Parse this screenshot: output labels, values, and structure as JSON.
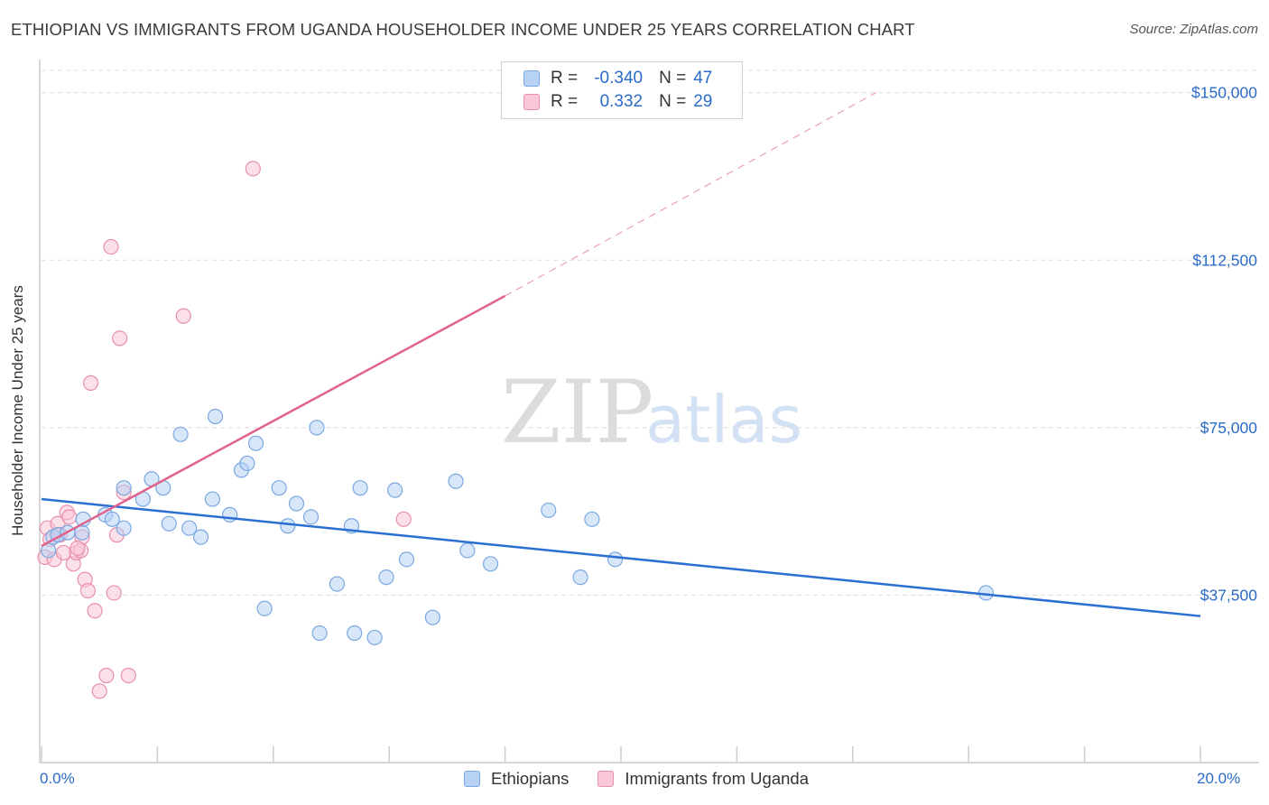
{
  "header": {
    "title": "ETHIOPIAN VS IMMIGRANTS FROM UGANDA HOUSEHOLDER INCOME UNDER 25 YEARS CORRELATION CHART",
    "source_label": "Source: ZipAtlas.com"
  },
  "watermark": {
    "zip": "ZIP",
    "atlas": "atlas"
  },
  "legend": {
    "series": [
      {
        "name": "Ethiopians",
        "r_label": "R =",
        "r_value": "-0.340",
        "n_label": "N =",
        "n_value": "47"
      },
      {
        "name": "Immigrants from Uganda",
        "r_label": "R =",
        "r_value": "0.332",
        "n_label": "N =",
        "n_value": "29"
      }
    ]
  },
  "colors": {
    "ethiopians_fill": "#b8d2f5",
    "ethiopians_stroke": "#7aa8e0",
    "ethiopians_line": "#2a6fd1",
    "uganda_fill": "#f9c7d6",
    "uganda_stroke": "#e98fab",
    "uganda_line": "#e0638c",
    "tick_label": "#2b6bc8",
    "grid": "#dddddd"
  },
  "chart_data": {
    "type": "scatter",
    "title": "ETHIOPIAN VS IMMIGRANTS FROM UGANDA HOUSEHOLDER INCOME UNDER 25 YEARS CORRELATION CHART",
    "xlabel": "",
    "ylabel": "Householder Income Under 25 years",
    "xlim": [
      0,
      20
    ],
    "ylim": [
      0,
      155000
    ],
    "x_tick_labels": [
      "0.0%",
      "20.0%"
    ],
    "y_ticks": [
      37500,
      75000,
      112500,
      150000
    ],
    "y_tick_labels": [
      "$37,500",
      "$75,000",
      "$112,500",
      "$150,000"
    ],
    "series": [
      {
        "name": "Ethiopians",
        "points": [
          [
            0.12,
            47500
          ],
          [
            0.2,
            50500
          ],
          [
            0.28,
            51000
          ],
          [
            0.45,
            51500
          ],
          [
            0.7,
            51500
          ],
          [
            0.72,
            54500
          ],
          [
            1.1,
            55500
          ],
          [
            1.22,
            54500
          ],
          [
            1.42,
            52500
          ],
          [
            1.42,
            61500
          ],
          [
            1.75,
            59000
          ],
          [
            1.9,
            63500
          ],
          [
            2.1,
            61500
          ],
          [
            2.2,
            53500
          ],
          [
            2.4,
            73500
          ],
          [
            2.55,
            52500
          ],
          [
            2.75,
            50500
          ],
          [
            2.95,
            59000
          ],
          [
            3.0,
            77500
          ],
          [
            3.25,
            55500
          ],
          [
            3.45,
            65500
          ],
          [
            3.55,
            67000
          ],
          [
            3.7,
            71500
          ],
          [
            3.85,
            34500
          ],
          [
            4.1,
            61500
          ],
          [
            4.25,
            53000
          ],
          [
            4.4,
            58000
          ],
          [
            4.65,
            55000
          ],
          [
            4.75,
            75000
          ],
          [
            4.8,
            29000
          ],
          [
            5.1,
            40000
          ],
          [
            5.35,
            53000
          ],
          [
            5.4,
            29000
          ],
          [
            5.5,
            61500
          ],
          [
            5.75,
            28000
          ],
          [
            5.95,
            41500
          ],
          [
            6.1,
            61000
          ],
          [
            6.3,
            45500
          ],
          [
            6.75,
            32500
          ],
          [
            7.15,
            63000
          ],
          [
            7.35,
            47500
          ],
          [
            7.75,
            44500
          ],
          [
            8.75,
            56500
          ],
          [
            9.3,
            41500
          ],
          [
            9.5,
            54500
          ],
          [
            9.9,
            45500
          ],
          [
            16.3,
            38000
          ]
        ],
        "trend": {
          "x": [
            0,
            20
          ],
          "y": [
            59000,
            32800
          ]
        }
      },
      {
        "name": "Immigrants from Uganda",
        "points": [
          [
            0.06,
            46000
          ],
          [
            0.1,
            52500
          ],
          [
            0.15,
            50000
          ],
          [
            0.22,
            45500
          ],
          [
            0.28,
            53500
          ],
          [
            0.32,
            51000
          ],
          [
            0.44,
            56000
          ],
          [
            0.48,
            55000
          ],
          [
            0.55,
            44500
          ],
          [
            0.6,
            47000
          ],
          [
            0.68,
            47500
          ],
          [
            0.7,
            50500
          ],
          [
            0.75,
            41000
          ],
          [
            0.8,
            38500
          ],
          [
            0.85,
            85000
          ],
          [
            0.92,
            34000
          ],
          [
            1.0,
            16000
          ],
          [
            1.12,
            19500
          ],
          [
            1.2,
            115500
          ],
          [
            1.25,
            38000
          ],
          [
            1.3,
            51000
          ],
          [
            1.35,
            95000
          ],
          [
            1.42,
            60500
          ],
          [
            1.5,
            19500
          ],
          [
            2.45,
            100000
          ],
          [
            3.65,
            133000
          ],
          [
            6.25,
            54500
          ],
          [
            0.38,
            47000
          ],
          [
            0.62,
            48000
          ]
        ],
        "trend": {
          "x": [
            0,
            8.0
          ],
          "y": [
            48500,
            104500
          ],
          "dashed_x": [
            8.0,
            14.4
          ],
          "dashed_y": [
            104500,
            150000
          ]
        }
      }
    ]
  }
}
